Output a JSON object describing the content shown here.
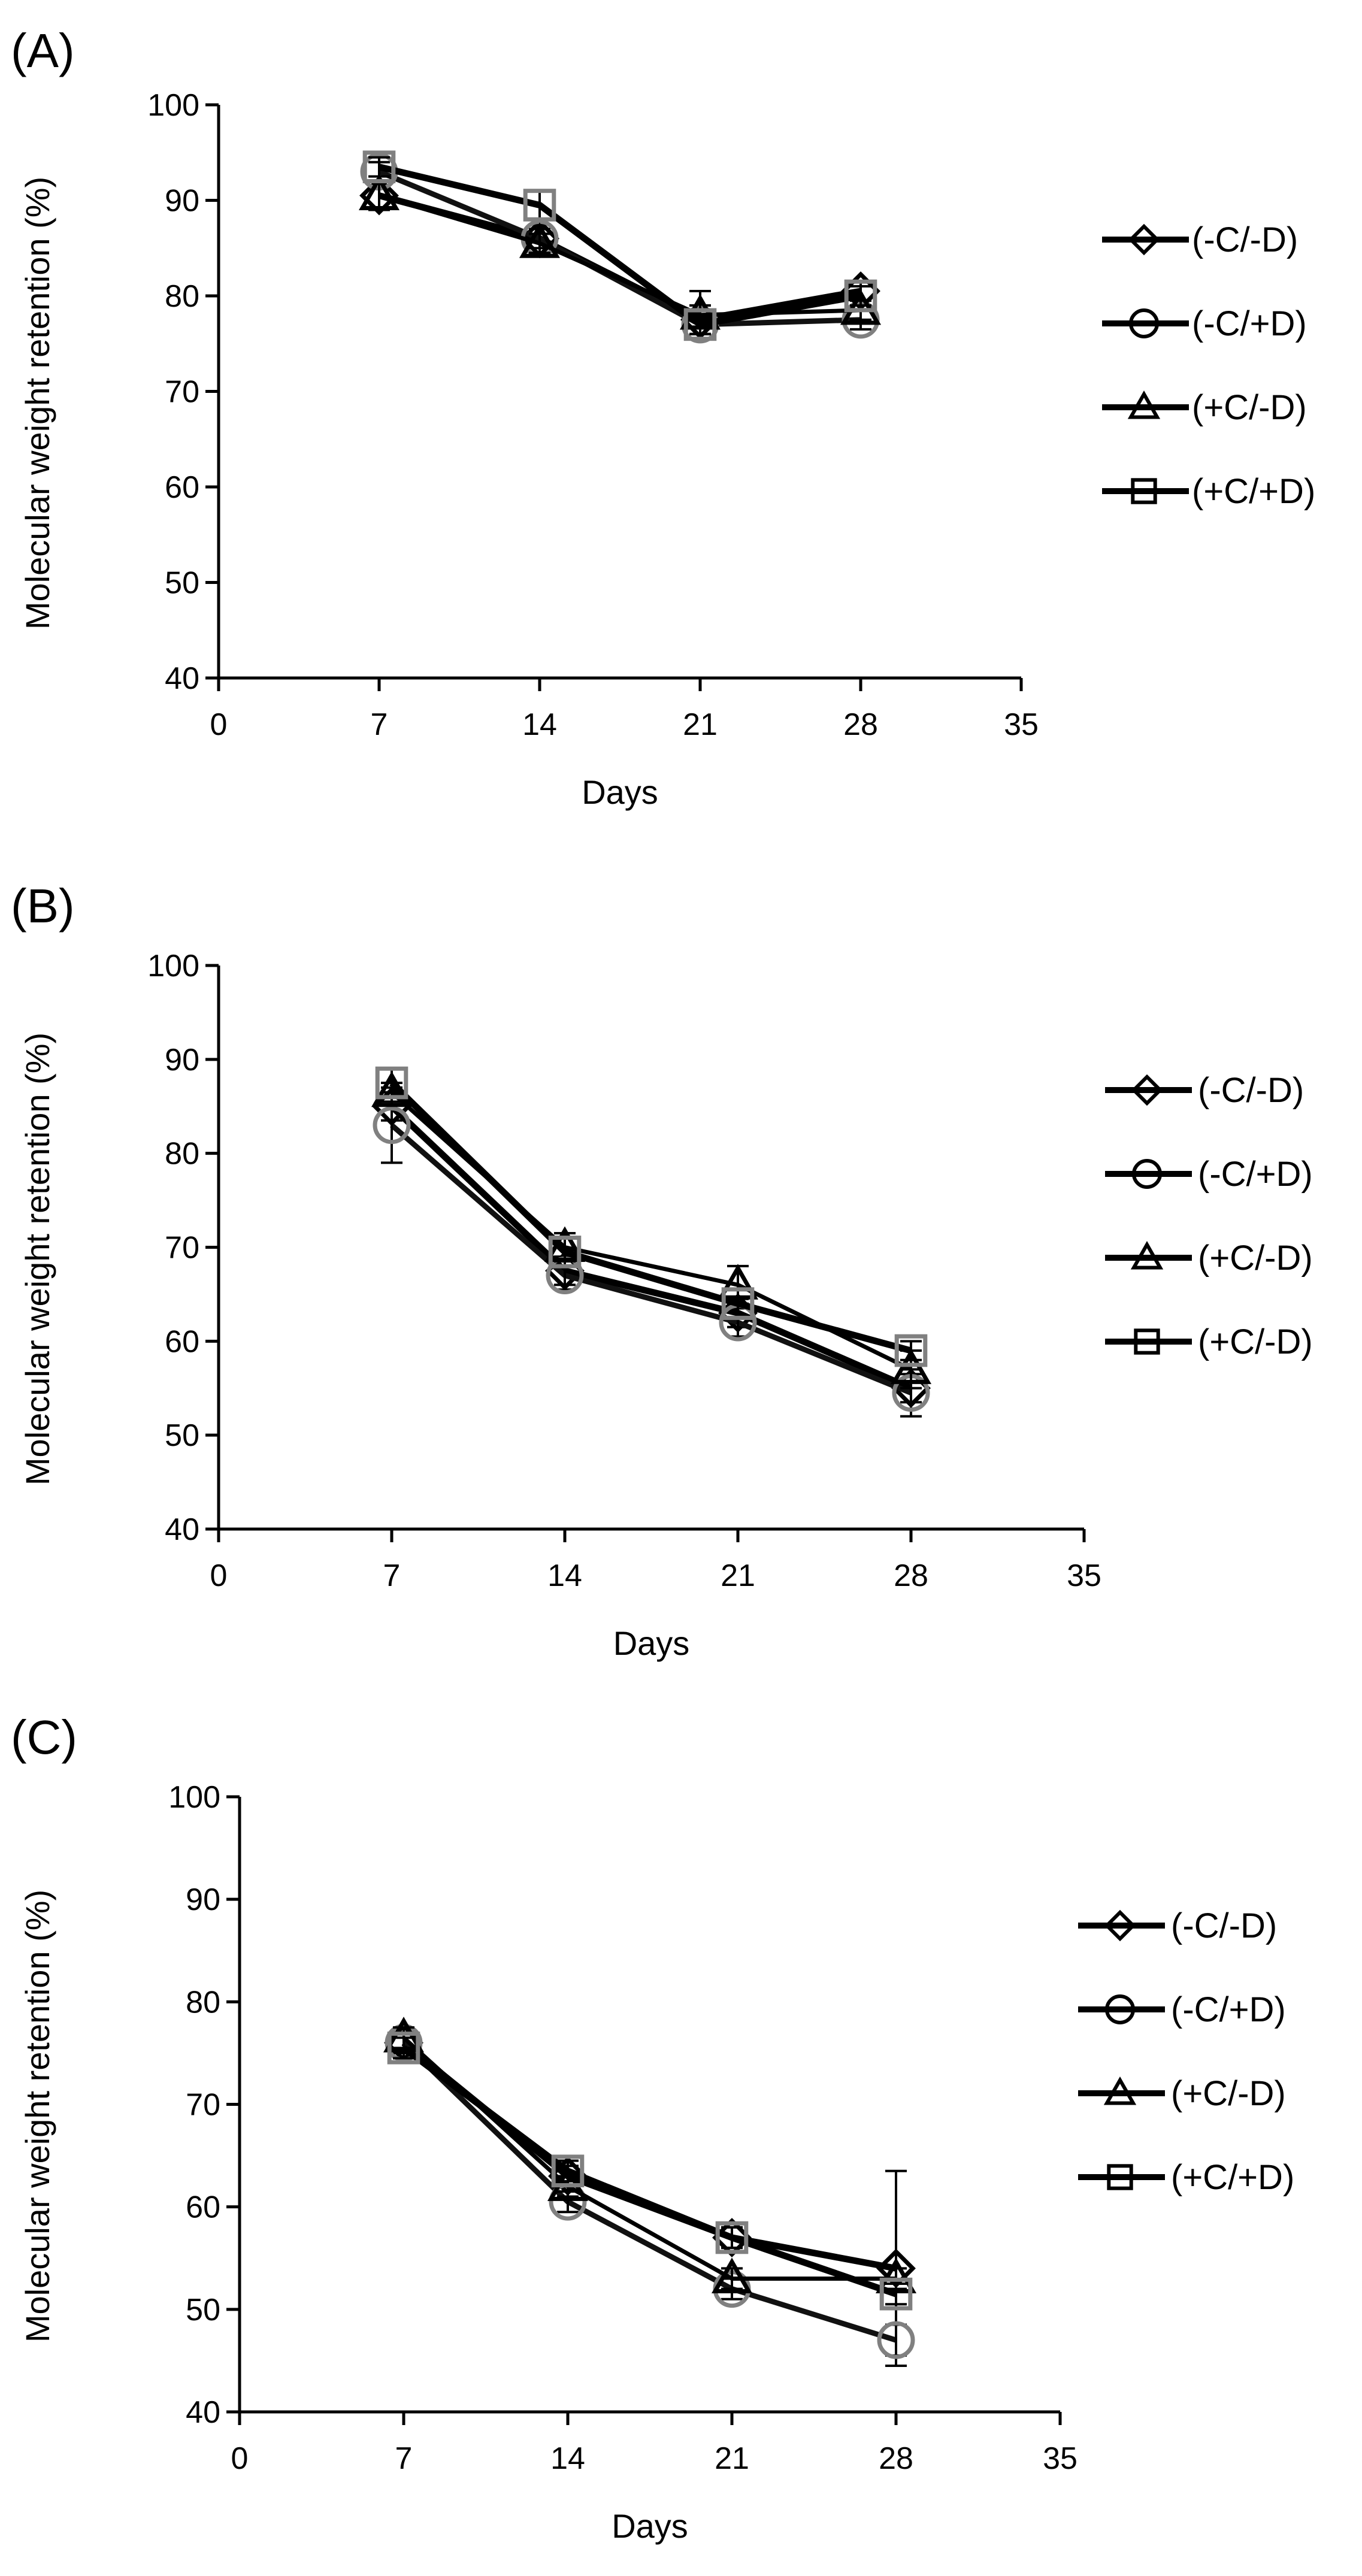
{
  "chart_data": [
    {
      "type": "line",
      "panel_label": "(A)",
      "title": "",
      "xlabel": "Days",
      "ylabel": "Molecular weight retention (%)",
      "xlim": [
        0,
        35
      ],
      "ylim": [
        40,
        100
      ],
      "x_ticks": [
        0,
        7,
        14,
        21,
        28,
        35
      ],
      "y_ticks": [
        40,
        50,
        60,
        70,
        80,
        90,
        100
      ],
      "grid": false,
      "legend_position": "right",
      "x": [
        7,
        14,
        21,
        28
      ],
      "series": [
        {
          "name": "(-C/-D)",
          "marker": "diamond",
          "values": [
            90.5,
            86.0,
            77.5,
            80.5
          ],
          "errors": [
            1.5,
            1.5,
            1.5,
            1.0
          ]
        },
        {
          "name": "(-C/+D)",
          "marker": "circle",
          "values": [
            93.0,
            86.0,
            77.0,
            77.5
          ],
          "errors": [
            1.0,
            1.0,
            1.0,
            1.0
          ]
        },
        {
          "name": "(+C/-D)",
          "marker": "triangle",
          "values": [
            90.5,
            85.5,
            78.0,
            78.5
          ],
          "errors": [
            1.5,
            1.0,
            2.5,
            1.0
          ]
        },
        {
          "name": "(+C/+D)",
          "marker": "square",
          "values": [
            93.5,
            89.5,
            77.0,
            80.0
          ],
          "errors": [
            1.0,
            1.5,
            1.0,
            1.0
          ]
        }
      ]
    },
    {
      "type": "line",
      "panel_label": "(B)",
      "title": "",
      "xlabel": "Days",
      "ylabel": "Molecular weight retention (%)",
      "xlim": [
        0,
        35
      ],
      "ylim": [
        40,
        100
      ],
      "x_ticks": [
        0,
        7,
        14,
        21,
        28,
        35
      ],
      "y_ticks": [
        40,
        50,
        60,
        70,
        80,
        90,
        100
      ],
      "grid": false,
      "legend_position": "right",
      "x": [
        7,
        14,
        21,
        28
      ],
      "series": [
        {
          "name": "(-C/-D)",
          "marker": "diamond",
          "values": [
            85.0,
            67.5,
            63.0,
            55.0
          ],
          "errors": [
            1.5,
            1.5,
            1.5,
            1.5
          ]
        },
        {
          "name": "(-C/+D)",
          "marker": "circle",
          "values": [
            83.0,
            67.0,
            62.0,
            54.5
          ],
          "errors": [
            4.0,
            1.5,
            1.5,
            2.5
          ]
        },
        {
          "name": "(+C/-D)",
          "marker": "triangle",
          "values": [
            86.5,
            70.0,
            66.0,
            57.0
          ],
          "errors": [
            1.0,
            1.5,
            2.0,
            2.0
          ]
        },
        {
          "name": "(+C/-D)",
          "marker": "square",
          "values": [
            87.5,
            69.5,
            64.0,
            59.0
          ],
          "errors": [
            1.5,
            1.5,
            1.5,
            1.0
          ]
        }
      ]
    },
    {
      "type": "line",
      "panel_label": "(C)",
      "title": "",
      "xlabel": "Days",
      "ylabel": "Molecular weight retention (%)",
      "xlim": [
        0,
        35
      ],
      "ylim": [
        40,
        100
      ],
      "x_ticks": [
        0,
        7,
        14,
        21,
        28,
        35
      ],
      "y_ticks": [
        40,
        50,
        60,
        70,
        80,
        90,
        100
      ],
      "grid": false,
      "legend_position": "right",
      "x": [
        7,
        14,
        21,
        28
      ],
      "series": [
        {
          "name": "(-C/-D)",
          "marker": "diamond",
          "values": [
            76.0,
            63.0,
            57.0,
            54.0
          ],
          "errors": [
            1.0,
            1.0,
            1.0,
            9.5
          ]
        },
        {
          "name": "(-C/+D)",
          "marker": "circle",
          "values": [
            76.0,
            60.5,
            52.0,
            47.0
          ],
          "errors": [
            1.0,
            1.0,
            1.0,
            1.5
          ]
        },
        {
          "name": "(+C/-D)",
          "marker": "triangle",
          "values": [
            76.5,
            62.0,
            53.0,
            53.0
          ],
          "errors": [
            1.0,
            1.0,
            1.0,
            1.0
          ]
        },
        {
          "name": "(+C/+D)",
          "marker": "square",
          "values": [
            75.5,
            63.5,
            57.0,
            51.5
          ],
          "errors": [
            1.0,
            1.0,
            1.0,
            1.0
          ]
        }
      ]
    }
  ]
}
